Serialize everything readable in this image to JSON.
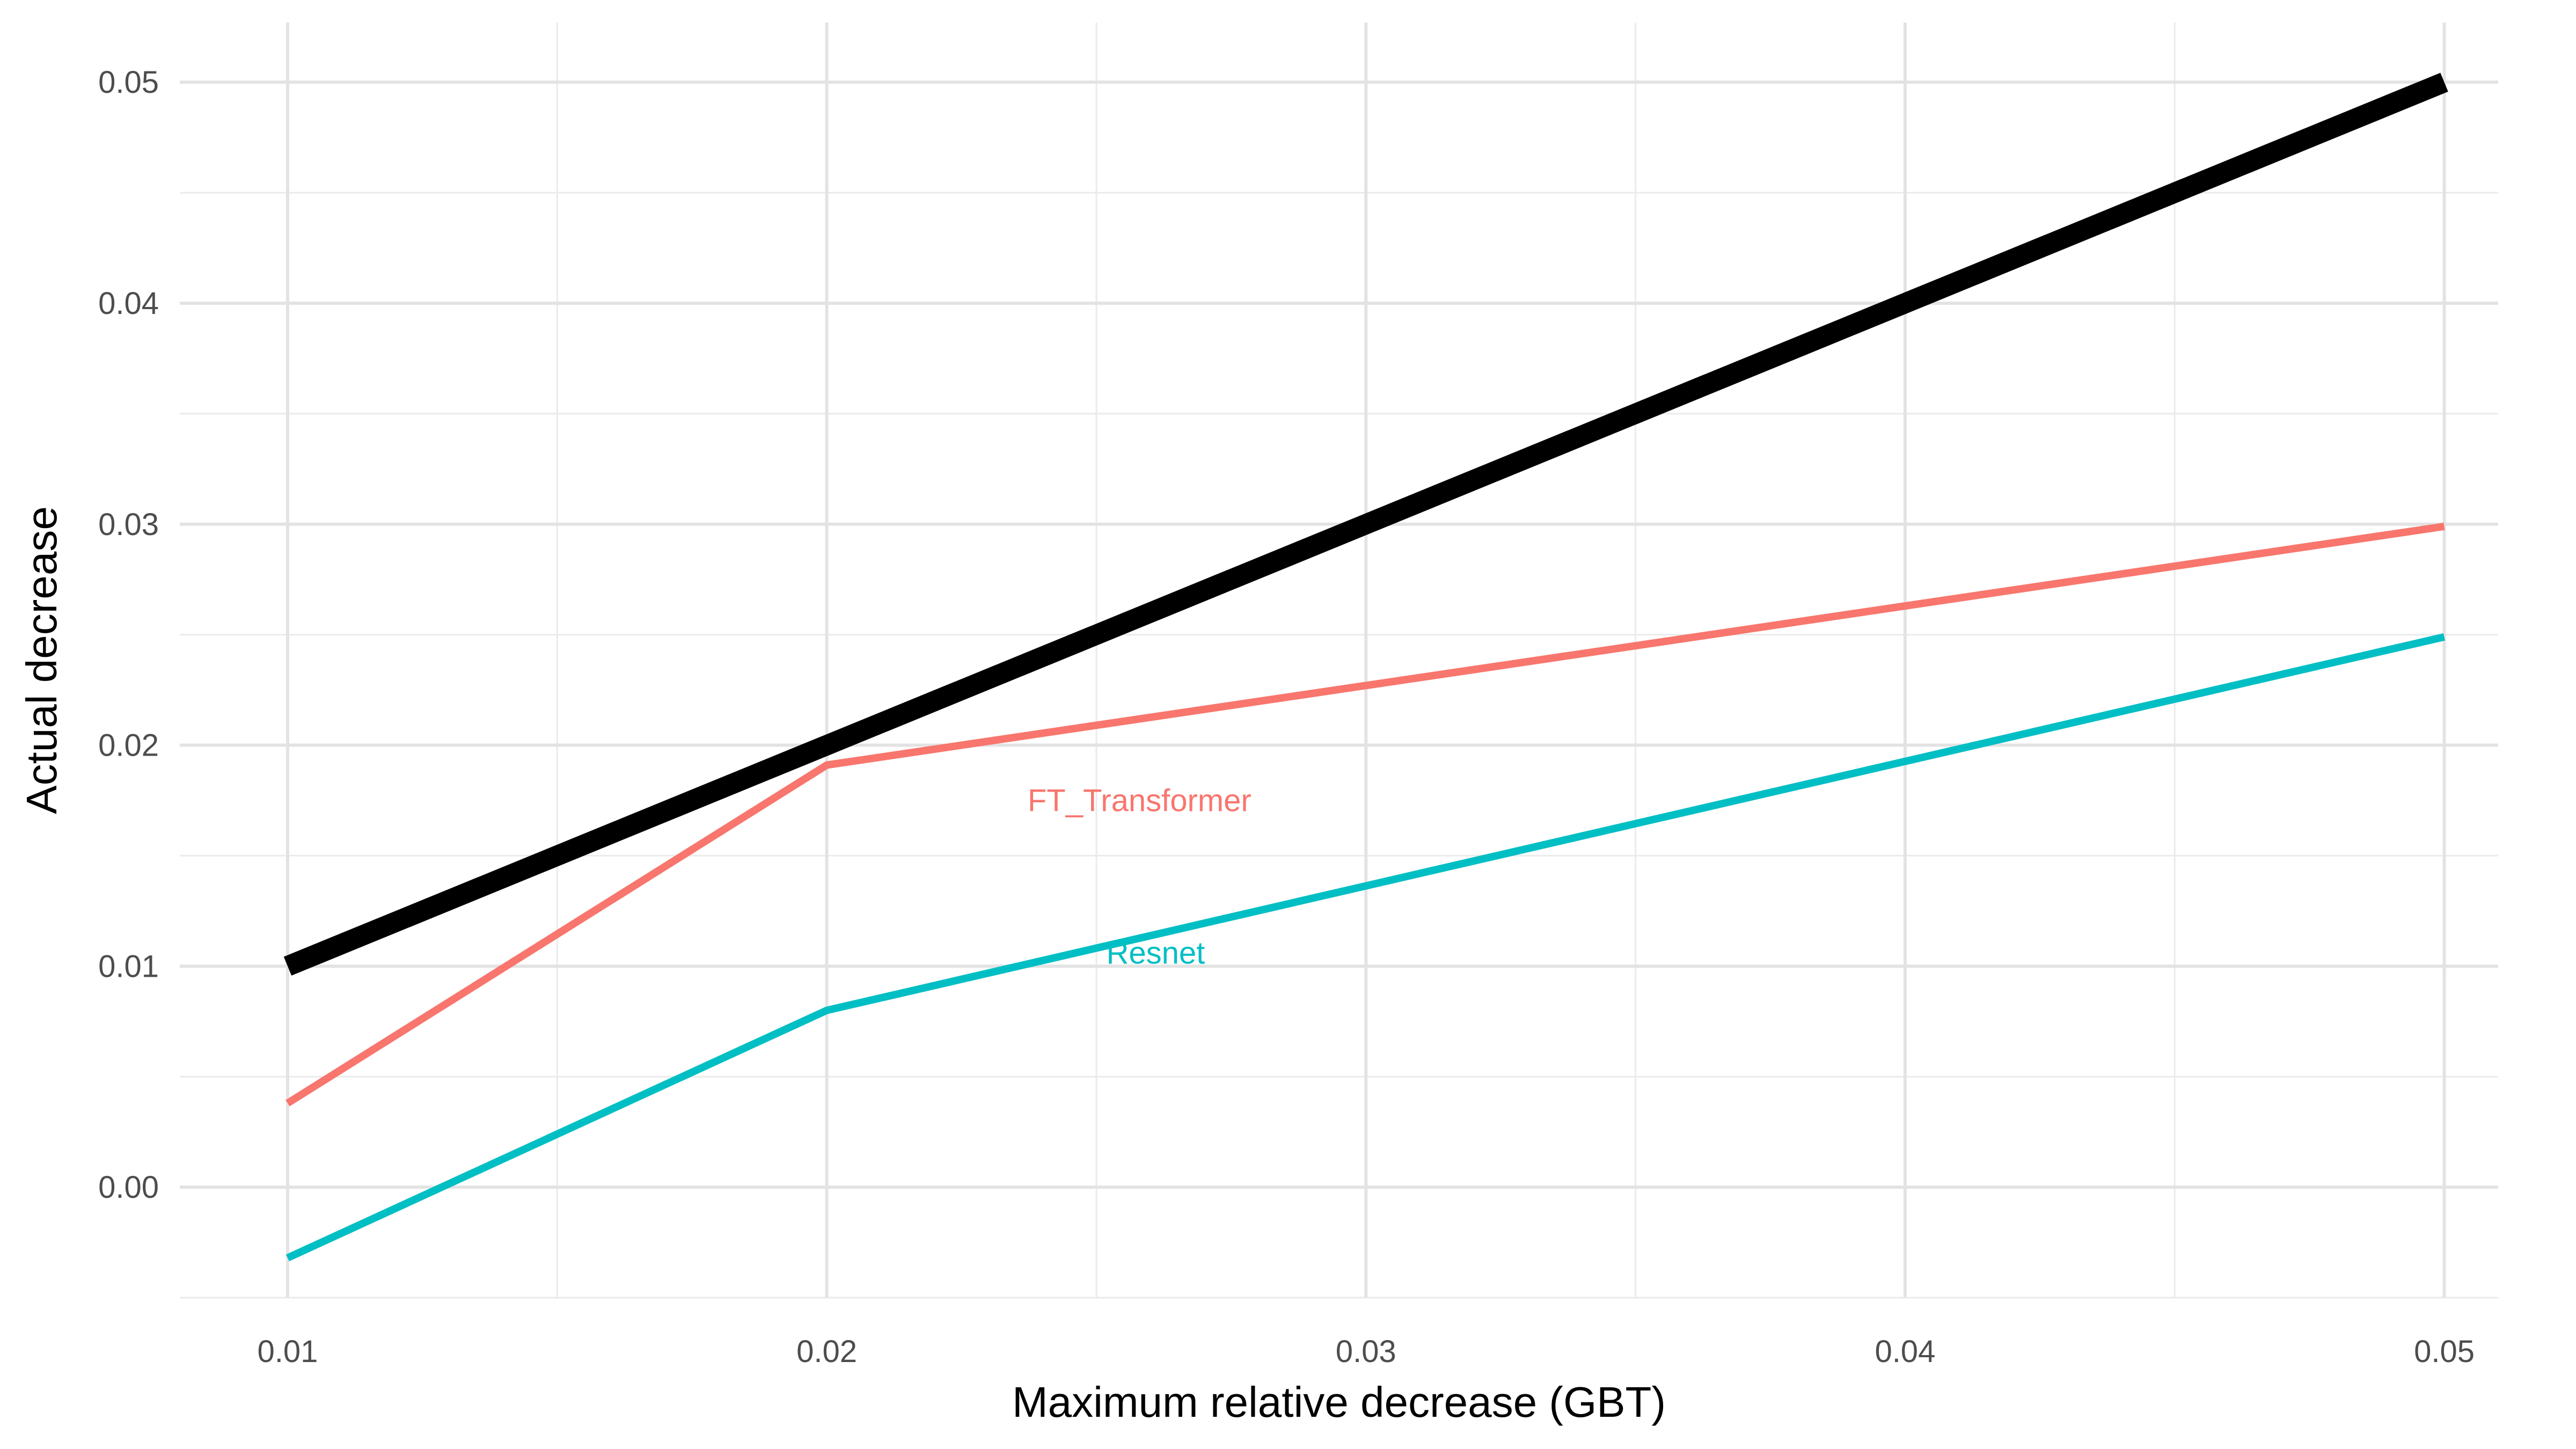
{
  "chart_data": {
    "type": "line",
    "title": "",
    "xlabel": "Maximum relative decrease (GBT)",
    "ylabel": "Actual decrease",
    "xlim": [
      0.008,
      0.051
    ],
    "ylim": [
      -0.005,
      0.0527
    ],
    "x_ticks": [
      0.01,
      0.02,
      0.03,
      0.04,
      0.05
    ],
    "x_tick_labels": [
      "0.01",
      "0.02",
      "0.03",
      "0.04",
      "0.05"
    ],
    "y_ticks": [
      0.0,
      0.01,
      0.02,
      0.03,
      0.04,
      0.05
    ],
    "y_tick_labels": [
      "0.00",
      "0.01",
      "0.02",
      "0.03",
      "0.04",
      "0.05"
    ],
    "grid": true,
    "legend": "none",
    "x": [
      0.01,
      0.02,
      0.05
    ],
    "series": [
      {
        "key": "reference",
        "color": "#000000",
        "values": [
          0.01,
          0.02,
          0.05
        ]
      },
      {
        "name": "FT_Transformer",
        "color": "#F8766D",
        "values": [
          0.0038,
          0.0191,
          0.0299
        ],
        "label": "FT_Transformer",
        "label_pos": [
          0.0258,
          0.0175
        ]
      },
      {
        "name": "Resnet",
        "color": "#00BFC4",
        "values": [
          -0.0032,
          0.008,
          0.0249
        ],
        "label": "Resnet",
        "label_pos": [
          0.0261,
          0.0106
        ]
      }
    ]
  }
}
